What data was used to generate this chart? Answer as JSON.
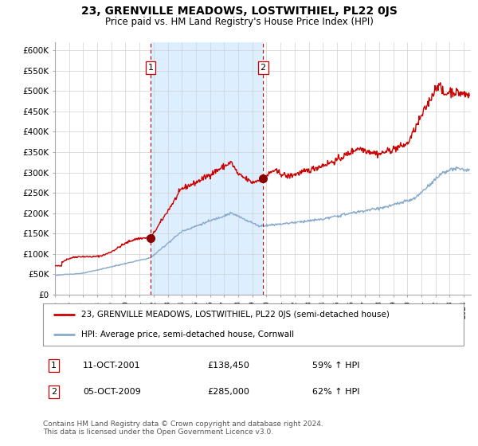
{
  "title": "23, GRENVILLE MEADOWS, LOSTWITHIEL, PL22 0JS",
  "subtitle": "Price paid vs. HM Land Registry's House Price Index (HPI)",
  "legend_line1": "23, GRENVILLE MEADOWS, LOSTWITHIEL, PL22 0JS (semi-detached house)",
  "legend_line2": "HPI: Average price, semi-detached house, Cornwall",
  "red_color": "#cc0000",
  "blue_color": "#88aacc",
  "bg_color": "#ddeeff",
  "annotation1_label": "1",
  "annotation1_date": "11-OCT-2001",
  "annotation1_price": "£138,450",
  "annotation1_hpi": "59% ↑ HPI",
  "annotation2_label": "2",
  "annotation2_date": "05-OCT-2009",
  "annotation2_price": "£285,000",
  "annotation2_hpi": "62% ↑ HPI",
  "footnote": "Contains HM Land Registry data © Crown copyright and database right 2024.\nThis data is licensed under the Open Government Licence v3.0.",
  "ylim": [
    0,
    620000
  ],
  "yticks": [
    0,
    50000,
    100000,
    150000,
    200000,
    250000,
    300000,
    350000,
    400000,
    450000,
    500000,
    550000,
    600000
  ],
  "sale1_x": 2001.78,
  "sale1_y": 138450,
  "sale2_x": 2009.76,
  "sale2_y": 285000,
  "vline1_x": 2001.78,
  "vline2_x": 2009.76,
  "xmin": 1995.0,
  "xmax": 2024.5
}
